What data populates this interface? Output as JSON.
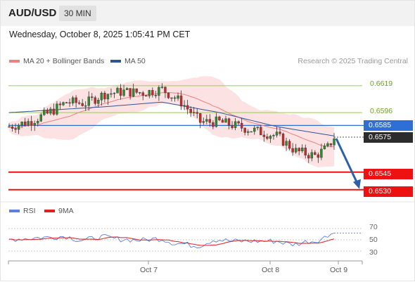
{
  "header": {
    "symbol": "AUD/USD",
    "timeframe": "30 MIN"
  },
  "datetime": "Wednesday, October 8, 2025 1:05:41 PM CET",
  "legend": {
    "ma20_label": "MA 20 + Bollinger Bands",
    "ma50_label": "MA 50",
    "credit": "Research © 2025 Trading Central",
    "rsi_label": "RSI",
    "ma9_label": "9MA"
  },
  "colors": {
    "ma20": "#f08080",
    "ma50": "#2e5597",
    "band": "#fbd8d8",
    "up": "#2e8b2e",
    "down": "#cc2a2a",
    "resistance": "#9acd5a",
    "support": "#ee1111",
    "current": "#2e6fd6",
    "last": "#2c2c2c",
    "rsi": "#5b7fe0",
    "rsi_ma": "#dd2020",
    "arrow": "#2e5fa8"
  },
  "levels": {
    "r2": "0.6619",
    "r1": "0.6596",
    "current": "0.6585",
    "last": "0.6575",
    "s1": "0.6545",
    "s2": "0.6530"
  },
  "rsi_axis": [
    "70",
    "50",
    "30"
  ],
  "x_axis": [
    "Oct 7",
    "Oct 8",
    "Oct 9"
  ],
  "chart_data": {
    "type": "line",
    "title": "AUD/USD",
    "timeframe": "30 MIN",
    "y_range": [
      0.6522,
      0.6634
    ],
    "price_path": {
      "description_points": [
        {
          "t": 0,
          "price": 0.6584
        },
        {
          "t": 6,
          "price": 0.6588
        },
        {
          "t": 12,
          "price": 0.6595
        },
        {
          "t": 18,
          "price": 0.6605
        },
        {
          "t": 24,
          "price": 0.6604
        },
        {
          "t": 30,
          "price": 0.6612
        },
        {
          "t": 36,
          "price": 0.6614
        },
        {
          "t": 42,
          "price": 0.6613
        },
        {
          "t": 48,
          "price": 0.6616
        },
        {
          "t": 54,
          "price": 0.6605
        },
        {
          "t": 60,
          "price": 0.6588
        },
        {
          "t": 66,
          "price": 0.6588
        },
        {
          "t": 72,
          "price": 0.6584
        },
        {
          "t": 78,
          "price": 0.658
        },
        {
          "t": 84,
          "price": 0.6576
        },
        {
          "t": 90,
          "price": 0.6563
        },
        {
          "t": 96,
          "price": 0.6559
        },
        {
          "t": 100,
          "price": 0.6566
        },
        {
          "t": 102,
          "price": 0.6575
        }
      ]
    },
    "ma50_points": [
      {
        "t": 0,
        "price": 0.6596
      },
      {
        "t": 30,
        "price": 0.6601
      },
      {
        "t": 48,
        "price": 0.6605
      },
      {
        "t": 66,
        "price": 0.6596
      },
      {
        "t": 84,
        "price": 0.6584
      },
      {
        "t": 102,
        "price": 0.6576
      }
    ],
    "horizontal_levels": [
      {
        "label": "0.6619",
        "value": 0.6619,
        "kind": "resistance"
      },
      {
        "label": "0.6596",
        "value": 0.6596,
        "kind": "resistance"
      },
      {
        "label": "0.6585",
        "value": 0.6585,
        "kind": "current"
      },
      {
        "label": "0.6575",
        "value": 0.6575,
        "kind": "last"
      },
      {
        "label": "0.6545",
        "value": 0.6545,
        "kind": "support"
      },
      {
        "label": "0.6530",
        "value": 0.653,
        "kind": "support"
      }
    ],
    "forecast_arrow": {
      "from": 0.6575,
      "to": 0.653
    },
    "x_labels": [
      "Oct 7",
      "Oct 8",
      "Oct 9"
    ],
    "rsi": {
      "range": [
        20,
        80
      ],
      "ticks": [
        70,
        50,
        30
      ]
    }
  }
}
